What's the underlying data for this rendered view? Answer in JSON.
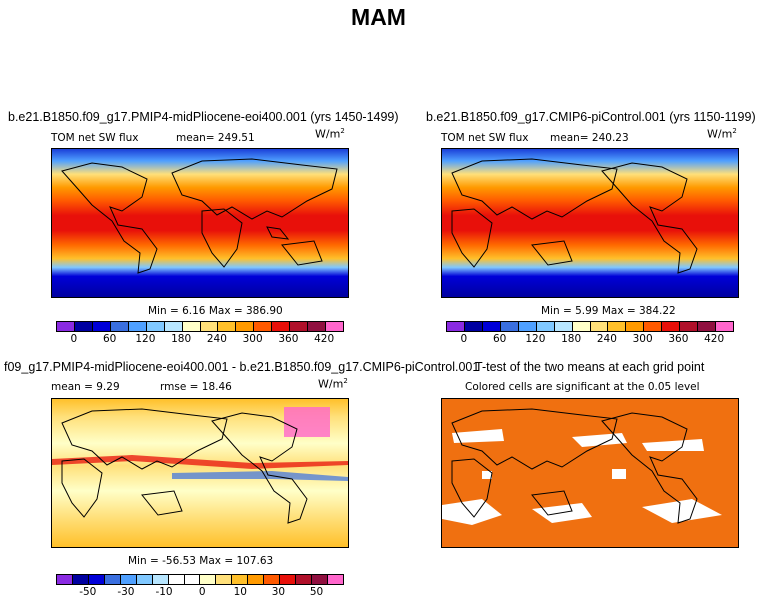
{
  "season": "MAM",
  "panels": {
    "p1": {
      "title": "b.e21.B1850.f09_g17.PMIP4-midPliocene-eoi400.001 (yrs 1450-1499)",
      "var": "TOM net SW flux",
      "mean": "mean= 249.51",
      "units": "W/m",
      "units_exp": "2",
      "minmax": "Min =    6.16 Max = 386.90"
    },
    "p2": {
      "title": "b.e21.B1850.f09_g17.CMIP6-piControl.001 (yrs 1150-1199)",
      "var": "TOM net SW flux",
      "mean": "mean= 240.23",
      "units": "W/m",
      "units_exp": "2",
      "minmax": "Min =    5.99 Max = 384.22"
    },
    "p3": {
      "title": "f09_g17.PMIP4-midPliocene-eoi400.001 - b.e21.B1850.f09_g17.CMIP6-piControl.001",
      "mean": "mean =    9.29",
      "rmse": "rmse =   18.46",
      "units": "W/m",
      "units_exp": "2",
      "minmax": "Min = -56.53 Max = 107.63"
    },
    "p4": {
      "title": "T-test of the two means at each grid point",
      "subtitle": "Colored cells are significant at the 0.05 level"
    }
  },
  "colorbars": {
    "abs": {
      "colors": [
        "#8a2be2",
        "#0000a0",
        "#0000d8",
        "#3a6fe0",
        "#4fa0ff",
        "#80c8ff",
        "#b8e6ff",
        "#ffffc8",
        "#ffe07a",
        "#ffc02a",
        "#ff9a00",
        "#ff5a00",
        "#e8100a",
        "#b0102a",
        "#901040",
        "#ff66cc"
      ],
      "ticks": [
        "0",
        "60",
        "120",
        "180",
        "240",
        "300",
        "360",
        "420"
      ]
    },
    "diff": {
      "colors": [
        "#8a2be2",
        "#0000a0",
        "#0000d8",
        "#3a6fe0",
        "#4fa0ff",
        "#80c8ff",
        "#b8e6ff",
        "#ffffff",
        "#ffffff",
        "#ffffc8",
        "#ffe07a",
        "#ffc02a",
        "#ff9a00",
        "#ff5a00",
        "#e8100a",
        "#b0102a",
        "#901040",
        "#ff66cc"
      ],
      "ticks": [
        "-50",
        "-30",
        "-10",
        "0",
        "10",
        "30",
        "50"
      ]
    }
  },
  "chart_data": [
    {
      "type": "heatmap",
      "title": "b.e21.B1850.f09_g17.PMIP4-midPliocene-eoi400.001 (yrs 1450-1499)",
      "variable": "TOM net SW flux",
      "units": "W/m2",
      "mean": 249.51,
      "min": 6.16,
      "max": 386.9,
      "colorbar_ticks": [
        0,
        60,
        120,
        180,
        240,
        300,
        360,
        420
      ]
    },
    {
      "type": "heatmap",
      "title": "b.e21.B1850.f09_g17.CMIP6-piControl.001 (yrs 1150-1199)",
      "variable": "TOM net SW flux",
      "units": "W/m2",
      "mean": 240.23,
      "min": 5.99,
      "max": 384.22,
      "colorbar_ticks": [
        0,
        60,
        120,
        180,
        240,
        300,
        360,
        420
      ]
    },
    {
      "type": "heatmap",
      "title": "f09_g17.PMIP4-midPliocene-eoi400.001 - b.e21.B1850.f09_g17.CMIP6-piControl.001",
      "units": "W/m2",
      "mean": 9.29,
      "rmse": 18.46,
      "min": -56.53,
      "max": 107.63,
      "colorbar_ticks": [
        -50,
        -30,
        -10,
        0,
        10,
        30,
        50
      ]
    },
    {
      "type": "heatmap",
      "title": "T-test of the two means at each grid point",
      "note": "Colored cells are significant at the 0.05 level",
      "significance_level": 0.05
    }
  ]
}
